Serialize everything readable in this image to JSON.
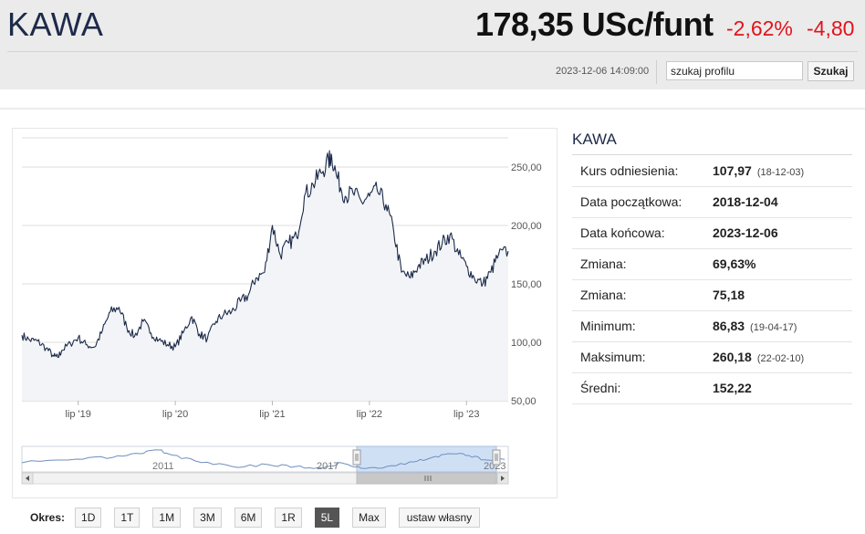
{
  "header": {
    "title": "KAWA",
    "price": "178,35 USc/funt",
    "change_pct": "-2,62%",
    "change_abs": "-4,80",
    "timestamp": "2023-12-06 14:09:00",
    "search_value": "szukaj profilu",
    "search_button": "Szukaj",
    "negative_color": "#e3121b"
  },
  "info": {
    "title": "KAWA",
    "rows": [
      {
        "label": "Kurs odniesienia:",
        "value": "107,97",
        "date": "(18-12-03)"
      },
      {
        "label": "Data początkowa:",
        "value": "2018-12-04",
        "date": ""
      },
      {
        "label": "Data końcowa:",
        "value": "2023-12-06",
        "date": ""
      },
      {
        "label": "Zmiana:",
        "value": "69,63%",
        "date": ""
      },
      {
        "label": "Zmiana:",
        "value": "75,18",
        "date": ""
      },
      {
        "label": "Minimum:",
        "value": "86,83",
        "date": "(19-04-17)"
      },
      {
        "label": "Maksimum:",
        "value": "260,18",
        "date": "(22-02-10)"
      },
      {
        "label": "Średni:",
        "value": "152,22",
        "date": ""
      }
    ]
  },
  "period": {
    "label": "Okres:",
    "buttons": [
      "1D",
      "1T",
      "1M",
      "3M",
      "6M",
      "1R",
      "5L",
      "Max",
      "ustaw własny"
    ],
    "active": "5L"
  },
  "chart_data": {
    "type": "area",
    "title": "",
    "ylim": [
      50,
      275
    ],
    "yticks": [
      "250,00",
      "200,00",
      "150,00",
      "100,00",
      "50,00"
    ],
    "ytick_values": [
      250,
      200,
      150,
      100,
      50
    ],
    "xlim": [
      2018.92,
      2023.93
    ],
    "xticks": [
      "lip '19",
      "lip '20",
      "lip '21",
      "lip '22",
      "lip '23"
    ],
    "xtick_values": [
      2019.5,
      2020.5,
      2021.5,
      2022.5,
      2023.5
    ],
    "grid": true,
    "line_color": "#1b2a4a",
    "fill_color": "#f3f4f7",
    "series": [
      {
        "x": [
          2018.92,
          2019.0,
          2019.08,
          2019.17,
          2019.25,
          2019.29,
          2019.33,
          2019.42,
          2019.5,
          2019.58,
          2019.67,
          2019.75,
          2019.83,
          2019.92,
          2020.0,
          2020.08,
          2020.17,
          2020.25,
          2020.33,
          2020.42,
          2020.5,
          2020.58,
          2020.67,
          2020.75,
          2020.83,
          2020.92,
          2021.0,
          2021.08,
          2021.17,
          2021.25,
          2021.33,
          2021.42,
          2021.5,
          2021.58,
          2021.67,
          2021.75,
          2021.83,
          2021.92,
          2022.0,
          2022.08,
          2022.11,
          2022.17,
          2022.25,
          2022.33,
          2022.42,
          2022.5,
          2022.58,
          2022.67,
          2022.75,
          2022.83,
          2022.92,
          2023.0,
          2023.08,
          2023.17,
          2023.25,
          2023.33,
          2023.42,
          2023.5,
          2023.58,
          2023.67,
          2023.75,
          2023.83,
          2023.93
        ],
        "y": [
          106,
          102,
          101,
          95,
          88,
          87,
          93,
          99,
          104,
          98,
          96,
          110,
          126,
          130,
          113,
          105,
          118,
          108,
          102,
          98,
          96,
          108,
          122,
          107,
          103,
          118,
          124,
          126,
          135,
          140,
          155,
          160,
          200,
          175,
          185,
          190,
          225,
          235,
          245,
          255,
          260,
          240,
          225,
          228,
          220,
          225,
          230,
          218,
          195,
          160,
          155,
          165,
          170,
          178,
          185,
          192,
          175,
          165,
          155,
          150,
          160,
          175,
          178
        ]
      }
    ],
    "navigator": {
      "labels": [
        "2011",
        "2017",
        "2023"
      ]
    }
  }
}
